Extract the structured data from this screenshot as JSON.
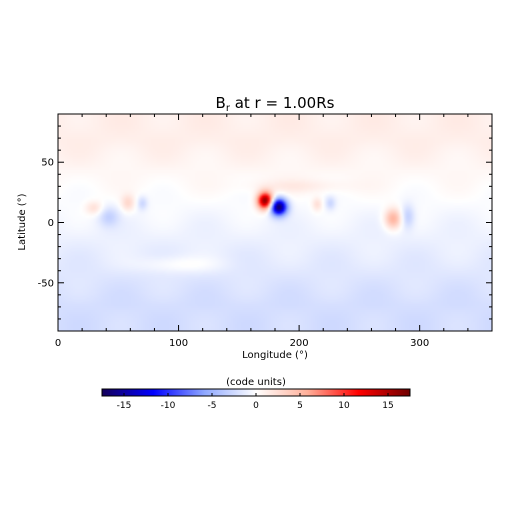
{
  "chart_data": {
    "type": "heatmap",
    "title": "B_r at r = 1.00Rs",
    "title_parts": {
      "symbol": "B",
      "subscript": "r",
      "rest": " at r = 1.00Rs"
    },
    "xlabel": "Longitude (°)",
    "ylabel": "Latitude (°)",
    "xlim": [
      0,
      360
    ],
    "ylim": [
      -90,
      90
    ],
    "x_ticks": [
      0,
      100,
      200,
      300
    ],
    "y_ticks": [
      -50,
      0,
      50
    ],
    "colormap": {
      "name": "blue-white-red",
      "colors": [
        "#14005a",
        "#0000ff",
        "#8fa8ff",
        "#ffffff",
        "#ffb09a",
        "#ff0000",
        "#6e0000"
      ]
    },
    "colorbar": {
      "label": "(code units)",
      "range": [
        -17.5,
        17.5
      ],
      "ticks": [
        -15,
        -10,
        -5,
        0,
        5,
        10,
        15
      ]
    },
    "background_field": [
      {
        "lat_min": 45,
        "lat_max": 90,
        "value": 1.2
      },
      {
        "lat_min": -45,
        "lat_max": 45,
        "value": -0.6
      },
      {
        "lat_min": -90,
        "lat_max": -45,
        "value": -2.2
      }
    ],
    "features": [
      {
        "lon": 172,
        "lat": 18,
        "value": 17.0,
        "sigma_lon": 4.5,
        "sigma_lat": 5
      },
      {
        "lon": 183,
        "lat": 13,
        "value": -17.0,
        "sigma_lon": 5,
        "sigma_lat": 5
      },
      {
        "lon": 278,
        "lat": 3,
        "value": 6.0,
        "sigma_lon": 5,
        "sigma_lat": 6
      },
      {
        "lon": 290,
        "lat": 5,
        "value": -3.0,
        "sigma_lon": 4,
        "sigma_lat": 7
      },
      {
        "lon": 58,
        "lat": 16,
        "value": 3.0,
        "sigma_lon": 4,
        "sigma_lat": 5
      },
      {
        "lon": 70,
        "lat": 16,
        "value": -2.5,
        "sigma_lon": 3,
        "sigma_lat": 4
      },
      {
        "lon": 30,
        "lat": 12,
        "value": 2.5,
        "sigma_lon": 5,
        "sigma_lat": 4
      },
      {
        "lon": 42,
        "lat": 5,
        "value": -2.5,
        "sigma_lon": 6,
        "sigma_lat": 6
      },
      {
        "lon": 215,
        "lat": 15,
        "value": 2.5,
        "sigma_lon": 3,
        "sigma_lat": 4
      },
      {
        "lon": 226,
        "lat": 16,
        "value": -2.5,
        "sigma_lon": 3,
        "sigma_lat": 4
      },
      {
        "lon": 100,
        "lat": -35,
        "value": 1.5,
        "sigma_lon": 25,
        "sigma_lat": 5
      },
      {
        "lon": 200,
        "lat": 30,
        "value": 1.2,
        "sigma_lon": 30,
        "sigma_lat": 4
      }
    ]
  }
}
